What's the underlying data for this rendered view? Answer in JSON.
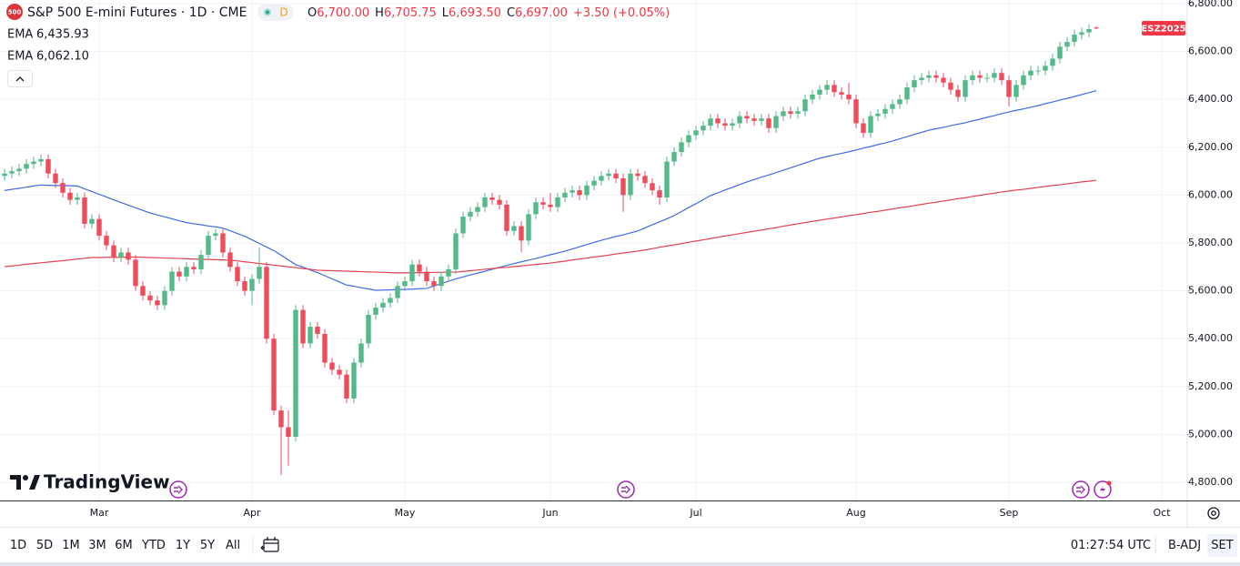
{
  "header": {
    "logo": "500",
    "title": "S&P 500 E-mini Futures · 1D · CME",
    "badge": "D",
    "ohlc": [
      {
        "label": "O",
        "value": "6,700.00"
      },
      {
        "label": "H",
        "value": "6,705.75"
      },
      {
        "label": "L",
        "value": "6,693.50"
      },
      {
        "label": "C",
        "value": "6,697.00"
      }
    ],
    "change": "+3.50 (+0.05%)"
  },
  "branding": "TradingView",
  "toolbar": {
    "ranges": [
      "1D",
      "5D",
      "1M",
      "3M",
      "6M",
      "YTD",
      "1Y",
      "5Y",
      "All"
    ],
    "time": "01:27:54 UTC",
    "adjust": "B-ADJ",
    "session": "SET"
  },
  "chart_data": {
    "type": "candlestick",
    "symbol_label": "ESZ2025",
    "up_color": "#53b987",
    "down_color": "#eb4d5c",
    "grid": true,
    "ylim": [
      4724,
      6815
    ],
    "yticks": [
      {
        "value": 4800,
        "label": "4,800.00"
      },
      {
        "value": 5000,
        "label": "5,000.00"
      },
      {
        "value": 5200,
        "label": "5,200.00"
      },
      {
        "value": 5400,
        "label": "5,400.00"
      },
      {
        "value": 5600,
        "label": "5,600.00"
      },
      {
        "value": 5800,
        "label": "5,800.00"
      },
      {
        "value": 6000,
        "label": "6,000.00"
      },
      {
        "value": 6200,
        "label": "6,200.00"
      },
      {
        "value": 6400,
        "label": "6,400.00"
      },
      {
        "value": 6600,
        "label": "6,600.00"
      },
      {
        "value": 6800,
        "label": "6,800.00"
      }
    ],
    "categories": [
      null,
      null,
      null,
      null,
      null,
      null,
      null,
      null,
      null,
      null,
      null,
      null,
      null,
      "Mar",
      null,
      null,
      null,
      null,
      null,
      null,
      null,
      null,
      null,
      null,
      null,
      null,
      null,
      null,
      null,
      null,
      null,
      null,
      null,
      null,
      "Apr",
      null,
      null,
      null,
      null,
      null,
      null,
      null,
      null,
      null,
      null,
      null,
      null,
      null,
      null,
      null,
      null,
      null,
      null,
      null,
      null,
      "May",
      null,
      null,
      null,
      null,
      null,
      null,
      null,
      null,
      null,
      null,
      null,
      null,
      null,
      null,
      null,
      null,
      null,
      null,
      null,
      "Jun",
      null,
      null,
      null,
      null,
      null,
      null,
      null,
      null,
      null,
      null,
      null,
      null,
      null,
      null,
      null,
      null,
      null,
      null,
      null,
      "Jul",
      null,
      null,
      null,
      null,
      null,
      null,
      null,
      null,
      null,
      null,
      null,
      null,
      null,
      null,
      null,
      null,
      null,
      null,
      null,
      null,
      null,
      "Aug",
      null,
      null,
      null,
      null,
      null,
      null,
      null,
      null,
      null,
      null,
      null,
      null,
      null,
      null,
      null,
      null,
      null,
      null,
      null,
      null,
      "Sep",
      null,
      null,
      null,
      null,
      null,
      null,
      null,
      null,
      null,
      null,
      null,
      null,
      null,
      null,
      null,
      null,
      null,
      null,
      null,
      null,
      "Oct"
    ],
    "open": [
      6080,
      6090,
      6100,
      6110,
      6130,
      6140,
      6150,
      6090,
      6050,
      6010,
      5980,
      5990,
      5880,
      5900,
      5830,
      5790,
      5740,
      5760,
      5730,
      5620,
      5580,
      5560,
      5540,
      5600,
      5680,
      5660,
      5700,
      5690,
      5750,
      5830,
      5840,
      5760,
      5700,
      5640,
      5600,
      5650,
      5700,
      5400,
      5100,
      5030,
      4990,
      5520,
      5380,
      5450,
      5420,
      5300,
      5270,
      5250,
      5150,
      5300,
      5380,
      5500,
      5530,
      5550,
      5570,
      5620,
      5640,
      5710,
      5680,
      5640,
      5620,
      5660,
      5690,
      5840,
      5910,
      5930,
      5950,
      5990,
      5980,
      5960,
      5850,
      5870,
      5810,
      5920,
      5970,
      5960,
      5950,
      5990,
      6010,
      6020,
      6000,
      6040,
      6060,
      6080,
      6090,
      6070,
      6000,
      6090,
      6080,
      6050,
      6020,
      5990,
      6140,
      6180,
      6220,
      6250,
      6270,
      6290,
      6320,
      6300,
      6290,
      6300,
      6330,
      6320,
      6310,
      6320,
      6280,
      6330,
      6350,
      6340,
      6350,
      6400,
      6420,
      6440,
      6460,
      6430,
      6420,
      6400,
      6300,
      6260,
      6330,
      6340,
      6360,
      6380,
      6400,
      6450,
      6480,
      6490,
      6500,
      6490,
      6470,
      6440,
      6410,
      6480,
      6500,
      6490,
      6490,
      6510,
      6480,
      6410,
      6460,
      6500,
      6520,
      6520,
      6540,
      6570,
      6620,
      6640,
      6670,
      6680,
      6700,
      null,
      null,
      null,
      null,
      null,
      null,
      null,
      null,
      null
    ],
    "high": [
      6110,
      6120,
      6130,
      6150,
      6160,
      6170,
      6170,
      6110,
      6070,
      6030,
      6010,
      6010,
      5920,
      5920,
      5850,
      5810,
      5780,
      5780,
      5750,
      5640,
      5600,
      5580,
      5620,
      5700,
      5700,
      5720,
      5720,
      5770,
      5850,
      5860,
      5860,
      5780,
      5720,
      5660,
      5670,
      5780,
      5720,
      5420,
      5120,
      5100,
      5540,
      5540,
      5470,
      5470,
      5440,
      5320,
      5290,
      5270,
      5320,
      5400,
      5520,
      5550,
      5570,
      5590,
      5640,
      5660,
      5730,
      5730,
      5700,
      5660,
      5680,
      5710,
      5860,
      5930,
      5950,
      5970,
      6010,
      6010,
      6000,
      5980,
      5890,
      5890,
      5940,
      5990,
      5990,
      6010,
      6010,
      6030,
      6040,
      6040,
      6060,
      6080,
      6100,
      6110,
      6110,
      6090,
      6110,
      6110,
      6100,
      6070,
      6040,
      6160,
      6200,
      6240,
      6270,
      6290,
      6310,
      6340,
      6340,
      6320,
      6320,
      6350,
      6350,
      6340,
      6340,
      6340,
      6350,
      6370,
      6370,
      6370,
      6420,
      6440,
      6460,
      6480,
      6480,
      6450,
      6470,
      6420,
      6320,
      6350,
      6360,
      6380,
      6400,
      6420,
      6470,
      6500,
      6510,
      6520,
      6520,
      6510,
      6490,
      6460,
      6500,
      6520,
      6520,
      6510,
      6530,
      6530,
      6500,
      6480,
      6520,
      6540,
      6540,
      6560,
      6590,
      6640,
      6660,
      6690,
      6700,
      6713.5,
      6705.75,
      null,
      null,
      null,
      null,
      null,
      null,
      null,
      null,
      null
    ],
    "low": [
      6060,
      6070,
      6080,
      6090,
      6110,
      6120,
      6070,
      6030,
      5990,
      5960,
      5960,
      5860,
      5860,
      5810,
      5770,
      5720,
      5720,
      5710,
      5600,
      5560,
      5540,
      5520,
      5520,
      5580,
      5640,
      5640,
      5670,
      5670,
      5730,
      5810,
      5740,
      5680,
      5620,
      5580,
      5540,
      5630,
      5380,
      5080,
      4830,
      4870,
      4970,
      5360,
      5360,
      5400,
      5280,
      5250,
      5230,
      5130,
      5130,
      5280,
      5360,
      5480,
      5510,
      5530,
      5550,
      5600,
      5620,
      5660,
      5620,
      5600,
      5600,
      5640,
      5670,
      5820,
      5890,
      5910,
      5930,
      5960,
      5940,
      5830,
      5830,
      5760,
      5790,
      5900,
      5940,
      5930,
      5930,
      5970,
      5990,
      5980,
      5980,
      6020,
      6040,
      6060,
      6050,
      5930,
      5980,
      6060,
      6030,
      6000,
      5960,
      5970,
      6120,
      6160,
      6200,
      6230,
      6250,
      6270,
      6280,
      6270,
      6270,
      6280,
      6300,
      6290,
      6290,
      6260,
      6260,
      6310,
      6320,
      6320,
      6330,
      6380,
      6400,
      6420,
      6410,
      6400,
      6380,
      6280,
      6240,
      6240,
      6310,
      6320,
      6340,
      6360,
      6380,
      6430,
      6460,
      6470,
      6470,
      6450,
      6420,
      6390,
      6390,
      6460,
      6470,
      6470,
      6470,
      6460,
      6370,
      6390,
      6440,
      6480,
      6500,
      6500,
      6520,
      6550,
      6600,
      6620,
      6650,
      6660,
      6693.5,
      null,
      null,
      null,
      null,
      null,
      null,
      null,
      null,
      null
    ],
    "close": [
      6090,
      6100,
      6110,
      6130,
      6140,
      6150,
      6090,
      6050,
      6010,
      5980,
      5990,
      5880,
      5900,
      5830,
      5790,
      5740,
      5760,
      5730,
      5620,
      5580,
      5560,
      5540,
      5600,
      5680,
      5660,
      5700,
      5690,
      5750,
      5830,
      5840,
      5760,
      5700,
      5640,
      5600,
      5650,
      5700,
      5400,
      5100,
      5030,
      4990,
      5520,
      5380,
      5450,
      5420,
      5300,
      5270,
      5250,
      5150,
      5300,
      5380,
      5500,
      5530,
      5550,
      5570,
      5620,
      5640,
      5710,
      5680,
      5640,
      5620,
      5660,
      5690,
      5840,
      5910,
      5930,
      5950,
      5990,
      5980,
      5960,
      5850,
      5870,
      5810,
      5920,
      5970,
      5960,
      5950,
      5990,
      6010,
      6020,
      6000,
      6040,
      6060,
      6080,
      6090,
      6070,
      6000,
      6090,
      6080,
      6050,
      6020,
      5990,
      6140,
      6180,
      6220,
      6250,
      6270,
      6290,
      6320,
      6300,
      6290,
      6300,
      6330,
      6320,
      6310,
      6320,
      6280,
      6330,
      6350,
      6340,
      6350,
      6400,
      6420,
      6440,
      6460,
      6430,
      6420,
      6400,
      6300,
      6260,
      6330,
      6340,
      6360,
      6380,
      6400,
      6450,
      6480,
      6490,
      6500,
      6490,
      6470,
      6440,
      6410,
      6480,
      6500,
      6490,
      6490,
      6510,
      6480,
      6410,
      6460,
      6500,
      6520,
      6520,
      6540,
      6570,
      6620,
      6640,
      6670,
      6680,
      6693.5,
      6697,
      null,
      null,
      null,
      null,
      null,
      null,
      null,
      null,
      null
    ],
    "series": [
      {
        "name": "EMA",
        "color": "#3d6be6",
        "value_label": "6,435.93",
        "values": [
          6019,
          6024,
          6028,
          6033,
          6038,
          6042,
          6041,
          6040,
          6040,
          6039,
          6038,
          6026,
          6015,
          6003,
          5992,
          5980,
          5969,
          5958,
          5947,
          5936,
          5925,
          5917,
          5909,
          5901,
          5893,
          5885,
          5880,
          5876,
          5871,
          5867,
          5862,
          5851,
          5839,
          5828,
          5813,
          5798,
          5783,
          5768,
          5749,
          5729,
          5710,
          5699,
          5687,
          5676,
          5663,
          5650,
          5637,
          5624,
          5619,
          5613,
          5608,
          5602,
          5603,
          5604,
          5605,
          5606,
          5607,
          5609,
          5610,
          5620,
          5630,
          5640,
          5650,
          5658,
          5666,
          5674,
          5682,
          5690,
          5698,
          5706,
          5714,
          5721,
          5728,
          5735,
          5743,
          5751,
          5758,
          5766,
          5775,
          5784,
          5793,
          5802,
          5811,
          5819,
          5827,
          5834,
          5842,
          5850,
          5863,
          5876,
          5888,
          5901,
          5914,
          5931,
          5948,
          5964,
          5981,
          5998,
          6009,
          6021,
          6032,
          6044,
          6055,
          6065,
          6075,
          6084,
          6094,
          6104,
          6114,
          6124,
          6134,
          6144,
          6154,
          6161,
          6168,
          6174,
          6181,
          6188,
          6196,
          6203,
          6211,
          6218,
          6226,
          6235,
          6244,
          6253,
          6262,
          6271,
          6277,
          6283,
          6290,
          6296,
          6302,
          6310,
          6317,
          6325,
          6332,
          6340,
          6347,
          6354,
          6360,
          6367,
          6374,
          6382,
          6389,
          6397,
          6404,
          6412,
          6420,
          6428,
          6435.93,
          null,
          null,
          null,
          null,
          null,
          null,
          null,
          null,
          null
        ]
      },
      {
        "name": "EMA",
        "color": "#e5404f",
        "value_label": "6,062.10",
        "values": [
          5701,
          5704,
          5707,
          5711,
          5714,
          5717,
          5720,
          5723,
          5726,
          5729,
          5733,
          5736,
          5739,
          5739,
          5740,
          5740,
          5740,
          5741,
          5741,
          5740,
          5739,
          5738,
          5737,
          5736,
          5735,
          5734,
          5733,
          5732,
          5731,
          5730,
          5729,
          5728,
          5725,
          5721,
          5718,
          5714,
          5711,
          5707,
          5704,
          5700,
          5697,
          5693,
          5690,
          5686,
          5685,
          5684,
          5683,
          5682,
          5681,
          5680,
          5679,
          5678,
          5677,
          5676,
          5675,
          5675,
          5676,
          5676,
          5676,
          5677,
          5677,
          5678,
          5678,
          5681,
          5684,
          5687,
          5690,
          5693,
          5696,
          5698,
          5701,
          5704,
          5707,
          5710,
          5713,
          5716,
          5720,
          5724,
          5729,
          5733,
          5737,
          5741,
          5745,
          5749,
          5754,
          5758,
          5762,
          5766,
          5771,
          5776,
          5782,
          5787,
          5792,
          5797,
          5803,
          5808,
          5813,
          5818,
          5824,
          5829,
          5834,
          5839,
          5844,
          5849,
          5854,
          5859,
          5864,
          5870,
          5875,
          5880,
          5885,
          5890,
          5895,
          5900,
          5904,
          5909,
          5914,
          5918,
          5923,
          5928,
          5932,
          5937,
          5942,
          5947,
          5951,
          5956,
          5961,
          5966,
          5970,
          5975,
          5980,
          5985,
          5989,
          5994,
          5999,
          6004,
          6008,
          6013,
          6017,
          6021,
          6024,
          6028,
          6032,
          6036,
          6040,
          6043,
          6047,
          6051,
          6055,
          6058,
          6062.1,
          null,
          null,
          null,
          null,
          null,
          null,
          null,
          null,
          null
        ]
      }
    ]
  }
}
